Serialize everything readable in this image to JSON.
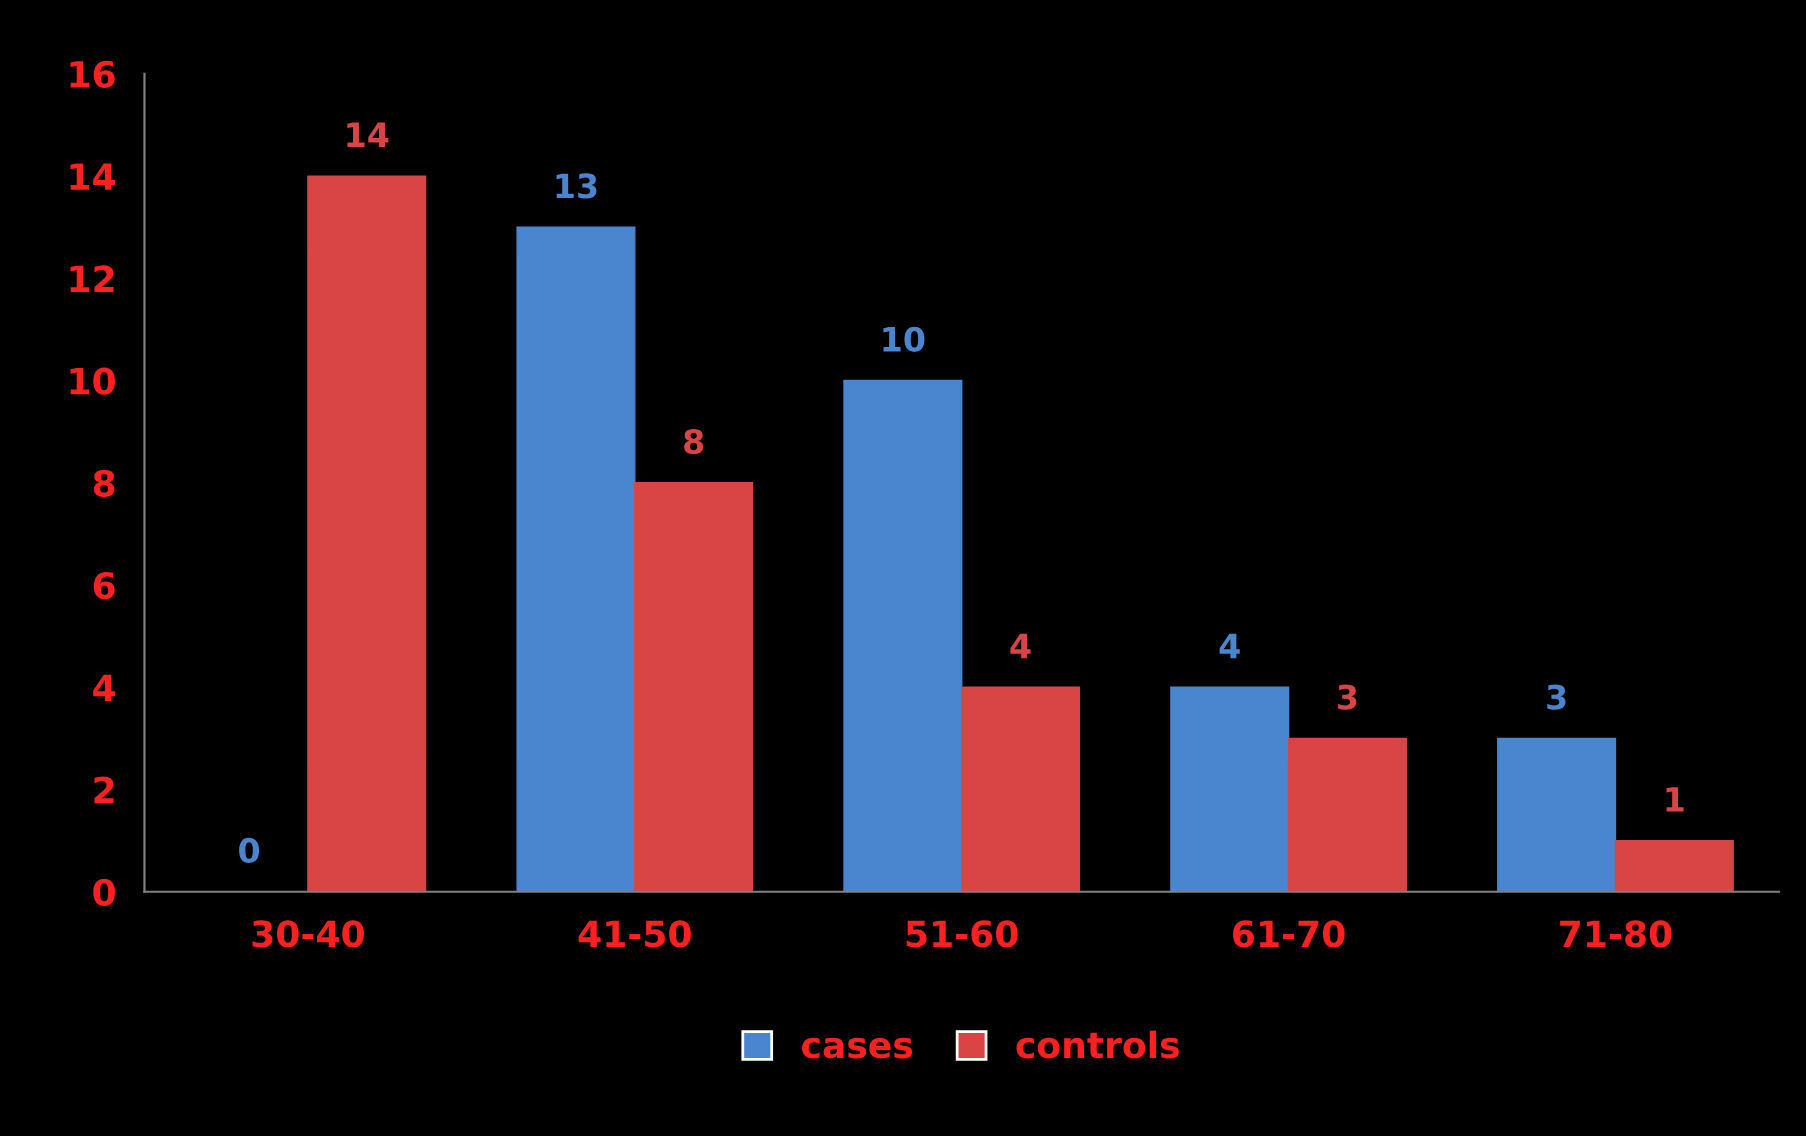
{
  "chart_data": {
    "type": "bar",
    "categories": [
      "30-40",
      "41-50",
      "51-60",
      "61-70",
      "71-80"
    ],
    "series": [
      {
        "name": "cases",
        "color": "#4a86d0",
        "values": [
          0,
          13,
          10,
          4,
          3
        ]
      },
      {
        "name": "controls",
        "color": "#d94444",
        "values": [
          14,
          8,
          4,
          3,
          1
        ]
      }
    ],
    "ylim": [
      0,
      16
    ],
    "yticks": [
      0,
      2,
      4,
      6,
      8,
      10,
      12,
      14,
      16
    ],
    "data_labels": true,
    "legend": "bottom",
    "grid": false
  }
}
